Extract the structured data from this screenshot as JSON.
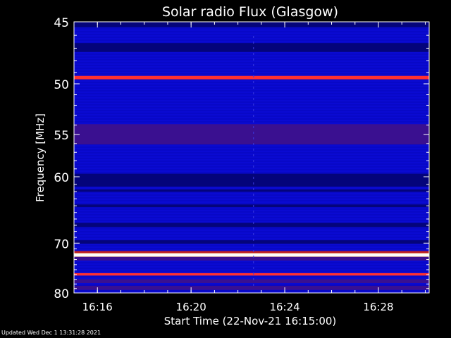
{
  "footer": "Updated Wed Dec  1 13:31:28 2021",
  "chart_data": {
    "type": "heatmap",
    "title": "Solar radio Flux (Glasgow)",
    "xlabel": "Start Time (22-Nov-21 16:15:00)",
    "ylabel": "Frequency [MHz]",
    "xlim": [
      "16:15:00",
      "16:30:10"
    ],
    "ylim": [
      80,
      45
    ],
    "x_ticks": [
      "16:16",
      "16:20",
      "16:24",
      "16:28"
    ],
    "y_ticks": [
      45,
      50,
      55,
      60,
      70,
      80
    ],
    "colors": {
      "background": "#0a0ad2",
      "dark": "#04047a",
      "purple": "#3a1090",
      "interference": "#ff3030",
      "hot": "#fff0c0"
    },
    "bands": [
      {
        "from": 45,
        "to": 45.4,
        "intensity": "dark"
      },
      {
        "from": 46.6,
        "to": 47.3,
        "intensity": "dark"
      },
      {
        "from": 49.3,
        "to": 49.6,
        "intensity": "interference"
      },
      {
        "from": 53.9,
        "to": 56.1,
        "intensity": "purple"
      },
      {
        "from": 59.6,
        "to": 61.3,
        "intensity": "dark"
      },
      {
        "from": 61.7,
        "to": 62.0,
        "intensity": "dark"
      },
      {
        "from": 63.8,
        "to": 64.2,
        "intensity": "dark"
      },
      {
        "from": 66.6,
        "to": 67.3,
        "intensity": "dark"
      },
      {
        "from": 69.5,
        "to": 70.1,
        "intensity": "dark"
      },
      {
        "from": 71.8,
        "to": 72.5,
        "intensity": "hot"
      },
      {
        "from": 72.5,
        "to": 73.2,
        "intensity": "purple"
      },
      {
        "from": 75.7,
        "to": 76.2,
        "intensity": "interference"
      },
      {
        "from": 77.0,
        "to": 77.8,
        "intensity": "purple"
      },
      {
        "from": 78.4,
        "to": 79.3,
        "intensity": "purple"
      }
    ]
  }
}
